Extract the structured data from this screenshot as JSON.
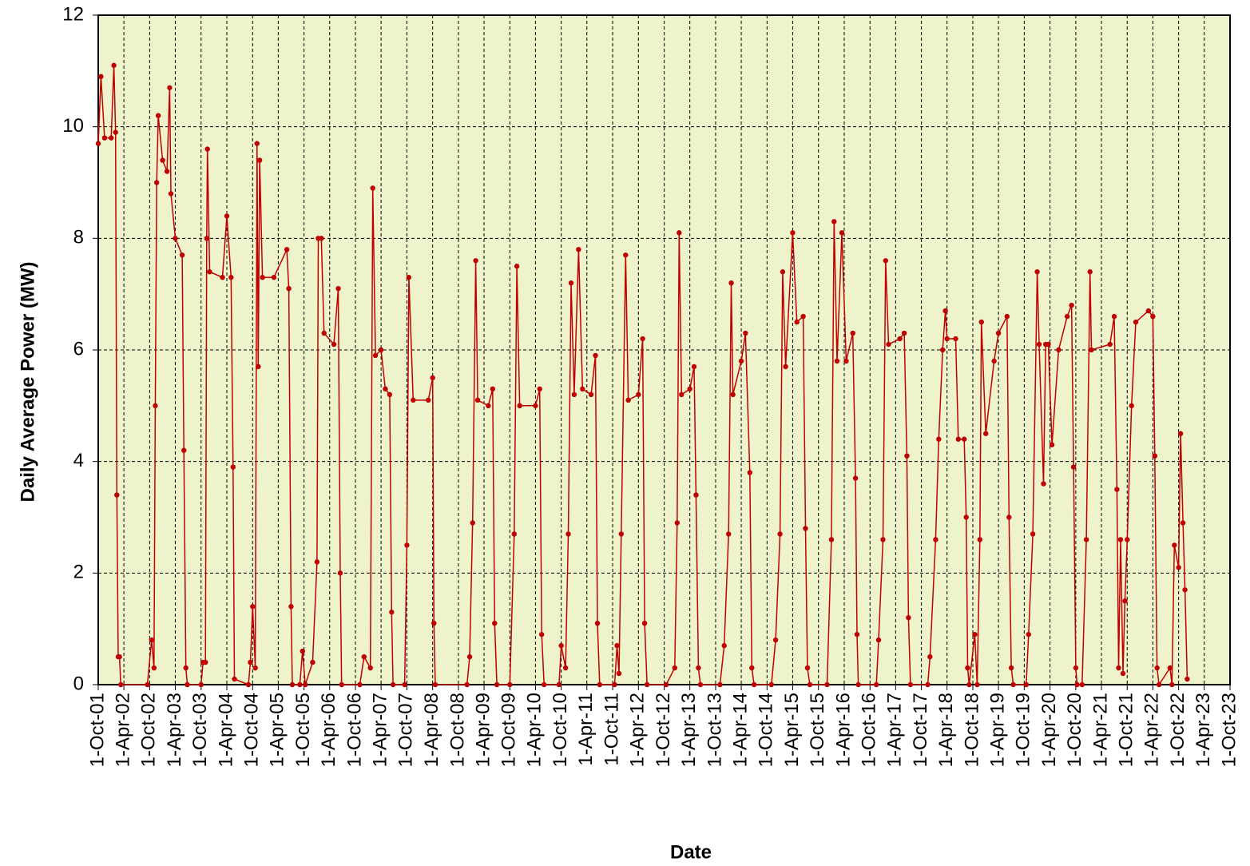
{
  "chart_data": {
    "type": "line",
    "x_label": "Date",
    "y_label": "Daily Average  Power (MW)",
    "color": "#c00000",
    "background": "#eef3cc",
    "grid": true,
    "xlim": [
      "2001-10-01",
      "2023-10-01"
    ],
    "ylim": [
      0,
      12
    ],
    "yticks": [
      0,
      2,
      4,
      6,
      8,
      10,
      12
    ],
    "xticks": [
      {
        "value": "2001-10-01",
        "label": "1-Oct-01"
      },
      {
        "value": "2002-04-01",
        "label": "1-Apr-02"
      },
      {
        "value": "2002-10-01",
        "label": "1-Oct-02"
      },
      {
        "value": "2003-04-01",
        "label": "1-Apr-03"
      },
      {
        "value": "2003-10-01",
        "label": "1-Oct-03"
      },
      {
        "value": "2004-04-01",
        "label": "1-Apr-04"
      },
      {
        "value": "2004-10-01",
        "label": "1-Oct-04"
      },
      {
        "value": "2005-04-01",
        "label": "1-Apr-05"
      },
      {
        "value": "2005-10-01",
        "label": "1-Oct-05"
      },
      {
        "value": "2006-04-01",
        "label": "1-Apr-06"
      },
      {
        "value": "2006-10-01",
        "label": "1-Oct-06"
      },
      {
        "value": "2007-04-01",
        "label": "1-Apr-07"
      },
      {
        "value": "2007-10-01",
        "label": "1-Oct-07"
      },
      {
        "value": "2008-04-01",
        "label": "1-Apr-08"
      },
      {
        "value": "2008-10-01",
        "label": "1-Oct-08"
      },
      {
        "value": "2009-04-01",
        "label": "1-Apr-09"
      },
      {
        "value": "2009-10-01",
        "label": "1-Oct-09"
      },
      {
        "value": "2010-04-01",
        "label": "1-Apr-10"
      },
      {
        "value": "2010-10-01",
        "label": "1-Oct-10"
      },
      {
        "value": "2011-04-01",
        "label": "1-Apr-11"
      },
      {
        "value": "2011-10-01",
        "label": "1-Oct-11"
      },
      {
        "value": "2012-04-01",
        "label": "1-Apr-12"
      },
      {
        "value": "2012-10-01",
        "label": "1-Oct-12"
      },
      {
        "value": "2013-04-01",
        "label": "1-Apr-13"
      },
      {
        "value": "2013-10-01",
        "label": "1-Oct-13"
      },
      {
        "value": "2014-04-01",
        "label": "1-Apr-14"
      },
      {
        "value": "2014-10-01",
        "label": "1-Oct-14"
      },
      {
        "value": "2015-04-01",
        "label": "1-Apr-15"
      },
      {
        "value": "2015-10-01",
        "label": "1-Oct-15"
      },
      {
        "value": "2016-04-01",
        "label": "1-Apr-16"
      },
      {
        "value": "2016-10-01",
        "label": "1-Oct-16"
      },
      {
        "value": "2017-04-01",
        "label": "1-Apr-17"
      },
      {
        "value": "2017-10-01",
        "label": "1-Oct-17"
      },
      {
        "value": "2018-04-01",
        "label": "1-Apr-18"
      },
      {
        "value": "2018-10-01",
        "label": "1-Oct-18"
      },
      {
        "value": "2019-04-01",
        "label": "1-Apr-19"
      },
      {
        "value": "2019-10-01",
        "label": "1-Oct-19"
      },
      {
        "value": "2020-04-01",
        "label": "1-Apr-20"
      },
      {
        "value": "2020-10-01",
        "label": "1-Oct-20"
      },
      {
        "value": "2021-04-01",
        "label": "1-Apr-21"
      },
      {
        "value": "2021-10-01",
        "label": "1-Oct-21"
      },
      {
        "value": "2022-04-01",
        "label": "1-Apr-22"
      },
      {
        "value": "2022-10-01",
        "label": "1-Oct-22"
      },
      {
        "value": "2023-04-01",
        "label": "1-Apr-23"
      },
      {
        "value": "2023-10-01",
        "label": "1-Oct-23"
      }
    ],
    "x": [
      "2001-10-01",
      "2001-10-20",
      "2001-11-15",
      "2002-01-01",
      "2002-01-20",
      "2002-02-01",
      "2002-02-10",
      "2002-02-20",
      "2002-03-01",
      "2002-03-10",
      "2002-09-15",
      "2002-10-15",
      "2002-11-01",
      "2002-11-10",
      "2002-11-20",
      "2002-12-01",
      "2003-01-01",
      "2003-02-01",
      "2003-02-20",
      "2003-03-01",
      "2003-04-01",
      "2003-05-20",
      "2003-06-01",
      "2003-06-15",
      "2003-06-25",
      "2003-10-01",
      "2003-10-15",
      "2003-11-01",
      "2003-11-10",
      "2003-11-15",
      "2003-12-01",
      "2004-03-01",
      "2004-04-01",
      "2004-05-01",
      "2004-05-15",
      "2004-05-25",
      "2004-09-01",
      "2004-09-15",
      "2004-10-01",
      "2004-10-20",
      "2004-11-01",
      "2004-11-10",
      "2004-11-20",
      "2004-12-10",
      "2005-03-01",
      "2005-06-01",
      "2005-06-15",
      "2005-07-01",
      "2005-07-10",
      "2005-09-01",
      "2005-09-20",
      "2005-10-10",
      "2005-12-01",
      "2006-01-01",
      "2006-01-10",
      "2006-02-01",
      "2006-02-20",
      "2006-05-01",
      "2006-06-01",
      "2006-06-15",
      "2006-06-25",
      "2006-11-01",
      "2006-12-01",
      "2007-01-15",
      "2007-02-01",
      "2007-02-20",
      "2007-04-01",
      "2007-05-01",
      "2007-06-01",
      "2007-06-15",
      "2007-06-25",
      "2007-09-15",
      "2007-10-01",
      "2007-10-15",
      "2007-11-15",
      "2008-03-01",
      "2008-04-01",
      "2008-04-10",
      "2008-04-20",
      "2008-12-01",
      "2008-12-20",
      "2009-01-10",
      "2009-02-01",
      "2009-02-15",
      "2009-05-01",
      "2009-06-01",
      "2009-06-15",
      "2009-07-01",
      "2009-10-01",
      "2009-11-01",
      "2009-11-20",
      "2009-12-10",
      "2010-04-01",
      "2010-05-01",
      "2010-05-15",
      "2010-06-01",
      "2010-09-15",
      "2010-10-01",
      "2010-11-01",
      "2010-11-20",
      "2010-12-10",
      "2011-01-01",
      "2011-02-01",
      "2011-03-01",
      "2011-05-01",
      "2011-06-01",
      "2011-06-15",
      "2011-07-01",
      "2011-10-15",
      "2011-11-01",
      "2011-11-15",
      "2011-12-01",
      "2012-01-01",
      "2012-01-20",
      "2012-04-01",
      "2012-05-01",
      "2012-05-15",
      "2012-06-01",
      "2012-10-15",
      "2012-12-15",
      "2013-01-01",
      "2013-01-15",
      "2013-02-01",
      "2013-04-01",
      "2013-05-01",
      "2013-05-15",
      "2013-06-01",
      "2013-06-15",
      "2013-11-01",
      "2013-12-01",
      "2014-01-01",
      "2014-01-20",
      "2014-02-01",
      "2014-04-01",
      "2014-05-01",
      "2014-06-01",
      "2014-06-15",
      "2014-07-01",
      "2014-11-01",
      "2014-12-01",
      "2015-01-01",
      "2015-01-20",
      "2015-02-10",
      "2015-04-01",
      "2015-05-01",
      "2015-06-15",
      "2015-07-01",
      "2015-07-15",
      "2015-08-01",
      "2015-12-01",
      "2016-01-01",
      "2016-01-20",
      "2016-02-10",
      "2016-03-15",
      "2016-04-15",
      "2016-06-01",
      "2016-06-20",
      "2016-07-01",
      "2016-07-10",
      "2016-11-15",
      "2016-12-01",
      "2017-01-01",
      "2017-01-20",
      "2017-02-10",
      "2017-05-01",
      "2017-06-01",
      "2017-06-20",
      "2017-07-01",
      "2017-07-15",
      "2017-11-15",
      "2017-12-01",
      "2018-01-10",
      "2018-02-01",
      "2018-03-01",
      "2018-03-20",
      "2018-04-01",
      "2018-06-01",
      "2018-06-20",
      "2018-08-01",
      "2018-08-15",
      "2018-08-25",
      "2018-09-05",
      "2018-10-15",
      "2018-11-01",
      "2018-11-20",
      "2018-12-01",
      "2019-01-01",
      "2019-03-01",
      "2019-04-01",
      "2019-06-01",
      "2019-06-15",
      "2019-07-01",
      "2019-07-15",
      "2019-10-15",
      "2019-11-01",
      "2019-12-01",
      "2020-01-01",
      "2020-01-15",
      "2020-02-15",
      "2020-03-01",
      "2020-03-20",
      "2020-04-15",
      "2020-06-01",
      "2020-08-01",
      "2020-09-01",
      "2020-09-15",
      "2020-10-01",
      "2020-10-10",
      "2020-11-15",
      "2020-12-15",
      "2021-01-10",
      "2021-01-20",
      "2021-06-01",
      "2021-07-01",
      "2021-07-20",
      "2021-08-01",
      "2021-08-15",
      "2021-09-01",
      "2021-09-15",
      "2021-10-01",
      "2021-11-01",
      "2021-12-01",
      "2022-03-01",
      "2022-04-01",
      "2022-04-15",
      "2022-05-01",
      "2022-05-15",
      "2022-08-01",
      "2022-08-15",
      "2022-09-01",
      "2022-10-01",
      "2022-10-15",
      "2022-11-01",
      "2022-11-15",
      "2022-12-01"
    ],
    "values": [
      9.7,
      10.9,
      9.8,
      9.8,
      11.1,
      9.9,
      3.4,
      0.5,
      0.5,
      0,
      0,
      0.8,
      0.3,
      5,
      9,
      10.2,
      9.4,
      9.2,
      10.7,
      8.8,
      8,
      7.7,
      4.2,
      0.3,
      0,
      0,
      0.4,
      0.4,
      8,
      9.6,
      7.4,
      7.3,
      8.4,
      7.3,
      3.9,
      0.1,
      0,
      0.4,
      1.4,
      0.3,
      9.7,
      5.7,
      9.4,
      7.3,
      7.3,
      7.8,
      7.1,
      1.4,
      0,
      0,
      0.6,
      0,
      0.4,
      2.2,
      8,
      8,
      6.3,
      6.1,
      7.1,
      2,
      0,
      0,
      0.5,
      0.3,
      8.9,
      5.9,
      6,
      5.3,
      5.2,
      1.3,
      0,
      0,
      2.5,
      7.3,
      5.1,
      5.1,
      5.5,
      1.1,
      0,
      0,
      0.5,
      2.9,
      7.6,
      5.1,
      5,
      5.3,
      1.1,
      0,
      0,
      2.7,
      7.5,
      5,
      5,
      5.3,
      0.9,
      0,
      0,
      0.7,
      0.3,
      2.7,
      7.2,
      5.2,
      7.8,
      5.3,
      5.2,
      5.9,
      1.1,
      0,
      0,
      0.7,
      0.2,
      2.7,
      7.7,
      5.1,
      5.2,
      6.2,
      1.1,
      0,
      0,
      0.3,
      2.9,
      8.1,
      5.2,
      5.3,
      5.7,
      3.4,
      0.3,
      0,
      0,
      0.7,
      2.7,
      7.2,
      5.2,
      5.8,
      6.3,
      3.8,
      0.3,
      0,
      0,
      0.8,
      2.7,
      7.4,
      5.7,
      8.1,
      6.5,
      6.6,
      2.8,
      0.3,
      0,
      0,
      2.6,
      8.3,
      5.8,
      8.1,
      5.8,
      6.3,
      3.7,
      0.9,
      0,
      0,
      0.8,
      2.6,
      7.6,
      6.1,
      6.2,
      6.3,
      4.1,
      1.2,
      0,
      0,
      0.5,
      2.6,
      4.4,
      6,
      6.7,
      6.2,
      6.2,
      4.4,
      4.4,
      3,
      0.3,
      0,
      0.9,
      0,
      2.6,
      6.5,
      4.5,
      5.8,
      6.3,
      6.6,
      3,
      0.3,
      0,
      0,
      0.9,
      2.7,
      7.4,
      6.1,
      3.6,
      6.1,
      6.1,
      4.3,
      6,
      6.6,
      6.8,
      3.9,
      0.3,
      0,
      0,
      2.6,
      7.4,
      6,
      6.1,
      6.6,
      3.5,
      0.3,
      2.6,
      0.2,
      1.5,
      2.6,
      5,
      6.5,
      6.7,
      6.6,
      4.1,
      0.3,
      0,
      0.3,
      0,
      2.5,
      2.1,
      4.5,
      2.9,
      1.7,
      0.1
    ]
  }
}
